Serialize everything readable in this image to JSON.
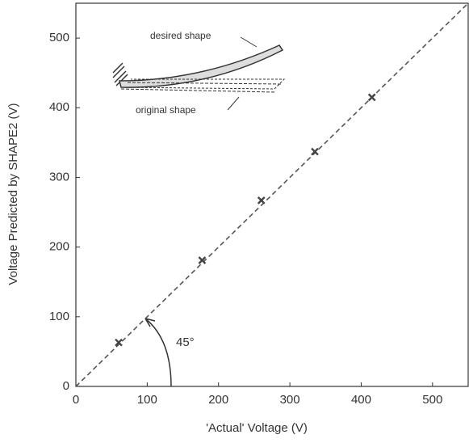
{
  "chart_data": {
    "type": "scatter",
    "x_label": "'Actual' Voltage (V)",
    "y_label": "Voltage Predicted by SHAPE2 (V)",
    "series": [
      {
        "color": "#444444",
        "x": [
          60,
          177,
          260,
          335,
          415
        ],
        "values": [
          63,
          181,
          267,
          337,
          415
        ]
      }
    ],
    "xlim": [
      0,
      550
    ],
    "ylim": [
      0,
      550
    ],
    "xticks": [
      0,
      100,
      200,
      300,
      400,
      500
    ],
    "yticks": [
      0,
      100,
      200,
      300,
      400,
      500
    ],
    "identity_line": true,
    "annotations": {
      "angle": "45°",
      "desired": "desired shape",
      "original": "original shape"
    }
  }
}
